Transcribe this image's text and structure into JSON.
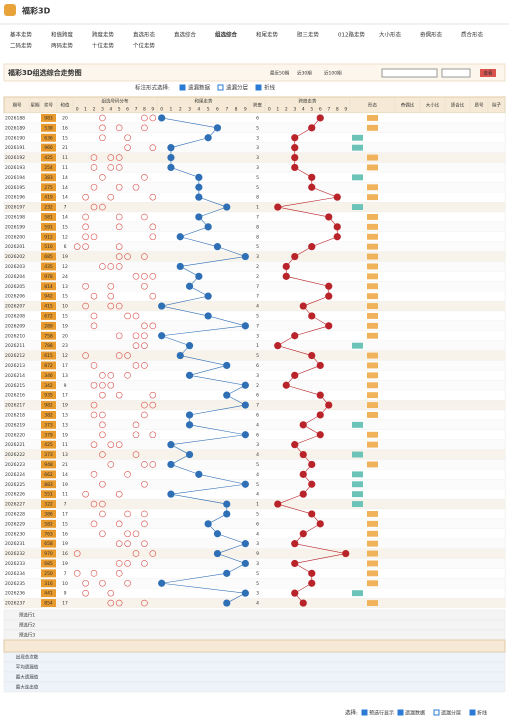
{
  "header": {
    "title": "福彩3D"
  },
  "nav": [
    "基本走势",
    "和值跨度",
    "跨度走势",
    "直选形态",
    "直选综合",
    "组选综合",
    "和尾走势",
    "胆三走势",
    "012路走势",
    "大小形态",
    "奇偶形态",
    "质合形态",
    "二码走势",
    "两码走势",
    "十位走势",
    "个位走势"
  ],
  "active_nav": 5,
  "page_title": "福彩3D组选综合走势图",
  "period_links": [
    "最近50期",
    "近30期",
    "近100期"
  ],
  "controls": {
    "label": "标注形式选择:",
    "options": [
      "遗漏数据",
      "遗漏分层",
      "折线"
    ],
    "button": "查看"
  },
  "columns": [
    "期号",
    "星期",
    "奖号",
    "和值",
    "组选号码分布",
    "和尾走势",
    "跨度",
    "跨度走势",
    "形态",
    "奇偶比",
    "大小比",
    "质合比",
    "质号",
    "除子"
  ],
  "draws": {
    "periods": [
      "2026188",
      "2026189",
      "2026190",
      "2026191",
      "2026192",
      "2026193",
      "2026194",
      "2026195",
      "2026196",
      "2026197",
      "2026198",
      "2026199",
      "2026200",
      "2026201",
      "2026202",
      "2026203",
      "2026204",
      "2026205",
      "2026206",
      "2026207",
      "2026208",
      "2026209",
      "2026210",
      "2026211",
      "2026212",
      "2026213",
      "2026214",
      "2026215",
      "2026216",
      "2026217",
      "2026218",
      "2026219",
      "2026220",
      "2026221",
      "2026222",
      "2026223",
      "2026224",
      "2026225",
      "2026226",
      "2026227",
      "2026228",
      "2026229",
      "2026230",
      "2026231",
      "2026232",
      "2026233",
      "2026234",
      "2026235",
      "2026236",
      "2026237"
    ],
    "numbers": [
      "983",
      "538",
      "636",
      "966",
      "425",
      "254",
      "383",
      "275",
      "419",
      "232",
      "581",
      "591",
      "912",
      "510",
      "685",
      "435",
      "978",
      "814",
      "942",
      "415",
      "672",
      "289",
      "758",
      "788",
      "615",
      "872",
      "346",
      "342",
      "935",
      "982",
      "382",
      "373",
      "379",
      "425",
      "373",
      "948",
      "662",
      "883",
      "551",
      "322",
      "386",
      "582",
      "763",
      "658",
      "970",
      "685",
      "250",
      "316",
      "441",
      "854"
    ],
    "sums": [
      20,
      16,
      15,
      21,
      11,
      11,
      14,
      14,
      14,
      7,
      14,
      15,
      12,
      6,
      19,
      12,
      24,
      13,
      15,
      10,
      15,
      19,
      20,
      23,
      12,
      17,
      13,
      9,
      17,
      19,
      13,
      13,
      19,
      11,
      13,
      21,
      14,
      19,
      11,
      7,
      17,
      15,
      16,
      19,
      16,
      19,
      7,
      10,
      9,
      17
    ],
    "spans": [
      6,
      5,
      3,
      3,
      3,
      3,
      5,
      5,
      8,
      1,
      7,
      8,
      8,
      5,
      3,
      2,
      2,
      7,
      7,
      4,
      5,
      7,
      3,
      1,
      5,
      6,
      3,
      2,
      6,
      7,
      6,
      4,
      6,
      3,
      4,
      5,
      4,
      5,
      4,
      1,
      5,
      6,
      4,
      3,
      9,
      3,
      5,
      5,
      3,
      4
    ]
  },
  "footer_rows": [
    "预选行1",
    "预选行2",
    "预选行3",
    "出现总次数",
    "平均遗漏值",
    "最大遗漏值",
    "最大连出值"
  ],
  "bottom": {
    "label": "选择:",
    "options": [
      "预选行显示",
      "遗漏数据",
      "遗漏分层",
      "折线"
    ]
  }
}
